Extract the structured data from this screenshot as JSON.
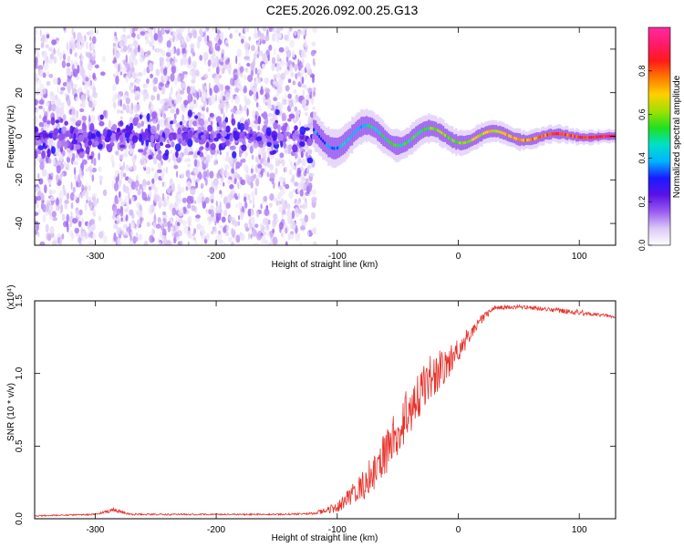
{
  "title": "C2E5.2026.092.00.25.G13",
  "colors": {
    "snr_line": "#e8312a",
    "colorbar": [
      "#ffffff",
      "#dcc8f6",
      "#9a5cf0",
      "#5a12e6",
      "#1a1aff",
      "#00b4ff",
      "#00e0c8",
      "#20e020",
      "#a0e000",
      "#ffd000",
      "#ff7a00",
      "#ff1a1a",
      "#ff1a6a",
      "#ff2aa0"
    ]
  },
  "chart_data": [
    {
      "type": "heatmap",
      "name": "spectrogram",
      "xlabel": "Height of straight line (km)",
      "ylabel": "Frequency (Hz)",
      "xlim": [
        -350,
        130
      ],
      "ylim": [
        -50,
        50
      ],
      "xticks": [
        -300,
        -200,
        -100,
        0,
        100
      ],
      "yticks": [
        -40,
        -20,
        0,
        20,
        40
      ],
      "features": {
        "noise_region_x": [
          -350,
          -118
        ],
        "data_gap_x": [
          -300,
          -285
        ],
        "carrier_frequency_hz": 0,
        "carrier_band_x": [
          -120,
          130
        ],
        "carrier_peak_value": 0.95,
        "carrier_drift_hz": 6
      },
      "colorbar": {
        "label": "Normalized spectral amplitude",
        "range": [
          0.0,
          1.0
        ],
        "ticks": [
          0.0,
          0.2,
          0.4,
          0.6,
          0.8
        ]
      }
    },
    {
      "type": "line",
      "name": "snr",
      "xlabel": "Height of straight line (km)",
      "ylabel": "SNR (10 * v/v)",
      "scale_note": "(x10⁴)",
      "xlim": [
        -350,
        130
      ],
      "ylim": [
        0.0,
        1.5
      ],
      "xticks": [
        -300,
        -200,
        -100,
        0,
        100
      ],
      "yticks": [
        0.0,
        0.5,
        1.0,
        1.5
      ],
      "series": [
        {
          "name": "SNR",
          "x": [
            -350,
            -300,
            -285,
            -280,
            -270,
            -200,
            -150,
            -120,
            -100,
            -90,
            -80,
            -70,
            -60,
            -50,
            -40,
            -30,
            -20,
            -10,
            0,
            10,
            20,
            30,
            50,
            75,
            100,
            110,
            130
          ],
          "values": [
            0.02,
            0.03,
            0.06,
            0.05,
            0.03,
            0.03,
            0.03,
            0.035,
            0.08,
            0.15,
            0.22,
            0.32,
            0.45,
            0.6,
            0.75,
            0.9,
            1.0,
            1.05,
            1.15,
            1.28,
            1.38,
            1.45,
            1.46,
            1.44,
            1.42,
            1.41,
            1.39
          ],
          "noise": [
            0.004,
            0.005,
            0.015,
            0.012,
            0.006,
            0.005,
            0.005,
            0.008,
            0.035,
            0.07,
            0.1,
            0.13,
            0.15,
            0.17,
            0.18,
            0.17,
            0.15,
            0.12,
            0.1,
            0.05,
            0.03,
            0.02,
            0.012,
            0.015,
            0.02,
            0.012,
            0.01
          ]
        }
      ]
    }
  ]
}
